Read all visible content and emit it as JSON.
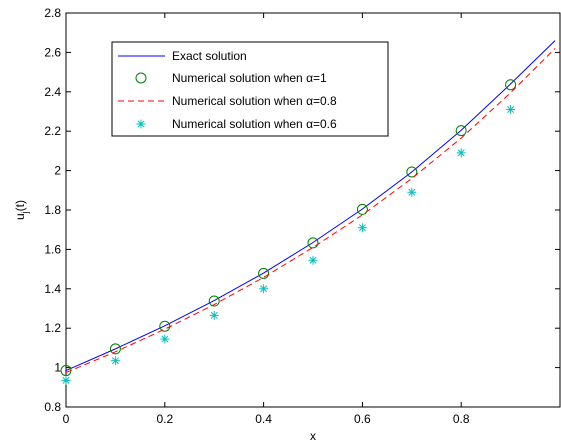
{
  "chart_data": {
    "type": "line",
    "title": "",
    "xlabel": "x",
    "ylabel": "u_j(t)",
    "xlim": [
      0,
      1
    ],
    "ylim": [
      0.8,
      2.8
    ],
    "xticks": [
      0,
      0.2,
      0.4,
      0.6,
      0.8
    ],
    "xtick_labels": [
      "0",
      "0.2",
      "0.4",
      "0.6",
      "0.8"
    ],
    "yticks": [
      0.8,
      1.0,
      1.2,
      1.4,
      1.6,
      1.8,
      2.0,
      2.2,
      2.4,
      2.6,
      2.8
    ],
    "ytick_labels": [
      "0.8",
      "1",
      "1.2",
      "1.4",
      "1.6",
      "1.8",
      "2",
      "2.2",
      "2.4",
      "2.6",
      "2.8"
    ],
    "grid": false,
    "legend_position": "top-left",
    "series": [
      {
        "name": "Exact solution",
        "style": "solid-line",
        "color": "#0000ff",
        "x": [
          0,
          0.1,
          0.2,
          0.3,
          0.4,
          0.5,
          0.6,
          0.7,
          0.8,
          0.9,
          0.99
        ],
        "y": [
          0.985,
          1.095,
          1.212,
          1.34,
          1.48,
          1.635,
          1.805,
          1.993,
          2.205,
          2.44,
          2.66
        ]
      },
      {
        "name": "Numerical solution when α=1",
        "style": "circle-marker",
        "color": "#008000",
        "x": [
          0,
          0.1,
          0.2,
          0.3,
          0.4,
          0.5,
          0.6,
          0.7,
          0.8,
          0.9
        ],
        "y": [
          0.985,
          1.095,
          1.21,
          1.338,
          1.478,
          1.633,
          1.803,
          1.993,
          2.203,
          2.436
        ]
      },
      {
        "name": "Numerical solution when α=0.8",
        "style": "dashed-line",
        "color": "#ff0000",
        "x": [
          0,
          0.1,
          0.2,
          0.3,
          0.4,
          0.5,
          0.6,
          0.7,
          0.8,
          0.9,
          0.99
        ],
        "y": [
          0.975,
          1.08,
          1.195,
          1.32,
          1.458,
          1.61,
          1.775,
          1.96,
          2.165,
          2.395,
          2.62
        ]
      },
      {
        "name": "Numerical solution when α=0.6",
        "style": "asterisk-marker",
        "color": "#00bfbf",
        "x": [
          0,
          0.1,
          0.2,
          0.3,
          0.4,
          0.5,
          0.6,
          0.7,
          0.8,
          0.9
        ],
        "y": [
          0.935,
          1.035,
          1.145,
          1.265,
          1.4,
          1.545,
          1.71,
          1.89,
          2.09,
          2.31
        ]
      }
    ]
  }
}
